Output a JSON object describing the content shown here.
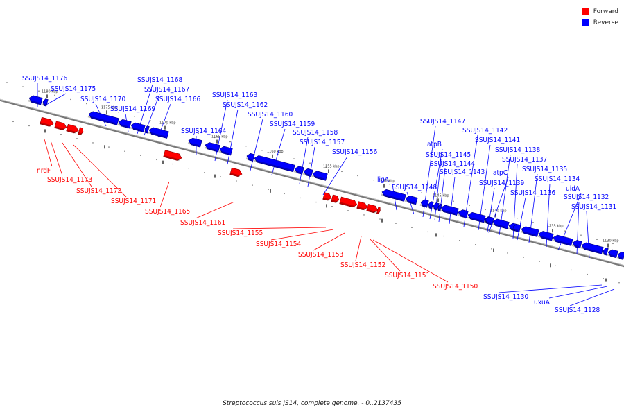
{
  "caption": "Streptococcus suis JS14, complete genome. - 0..2137435",
  "legend": [
    {
      "label": "Forward",
      "color": "#ff0000"
    },
    {
      "label": "Reverse",
      "color": "#0000ff"
    }
  ],
  "colors": {
    "forward": "#ff0000",
    "reverse": "#0000ff",
    "backbone": "#666666"
  },
  "scale_ticks": [
    "1180 kbp",
    "1175 kbp",
    "1170 kbp",
    "1165 kbp",
    "1160 kbp",
    "1155 kbp",
    "1150 kbp",
    "1145 kbp",
    "1140 kbp",
    "1135 kbp",
    "1130 kbp"
  ],
  "genes": [
    {
      "name": "SSUJS14_1176",
      "strand": "reverse"
    },
    {
      "name": "SSUJS14_1175",
      "strand": "reverse"
    },
    {
      "name": "nrdF",
      "strand": "forward"
    },
    {
      "name": "SSUJS14_1173",
      "strand": "forward"
    },
    {
      "name": "SSUJS14_1172",
      "strand": "forward"
    },
    {
      "name": "SSUJS14_1171",
      "strand": "forward"
    },
    {
      "name": "SSUJS14_1170",
      "strand": "reverse"
    },
    {
      "name": "SSUJS14_1169",
      "strand": "reverse"
    },
    {
      "name": "SSUJS14_1168",
      "strand": "reverse"
    },
    {
      "name": "SSUJS14_1167",
      "strand": "reverse"
    },
    {
      "name": "SSUJS14_1166",
      "strand": "reverse"
    },
    {
      "name": "SSUJS14_1165",
      "strand": "forward"
    },
    {
      "name": "SSUJS14_1164",
      "strand": "reverse"
    },
    {
      "name": "SSUJS14_1163",
      "strand": "reverse"
    },
    {
      "name": "SSUJS14_1162",
      "strand": "reverse"
    },
    {
      "name": "SSUJS14_1161",
      "strand": "forward"
    },
    {
      "name": "SSUJS14_1160",
      "strand": "reverse"
    },
    {
      "name": "SSUJS14_1159",
      "strand": "reverse"
    },
    {
      "name": "SSUJS14_1158",
      "strand": "reverse"
    },
    {
      "name": "SSUJS14_1157",
      "strand": "reverse"
    },
    {
      "name": "SSUJS14_1156",
      "strand": "reverse"
    },
    {
      "name": "SSUJS14_1155",
      "strand": "forward"
    },
    {
      "name": "SSUJS14_1154",
      "strand": "forward"
    },
    {
      "name": "SSUJS14_1153",
      "strand": "forward"
    },
    {
      "name": "SSUJS14_1152",
      "strand": "forward"
    },
    {
      "name": "SSUJS14_1151",
      "strand": "forward"
    },
    {
      "name": "SSUJS14_1150",
      "strand": "forward"
    },
    {
      "name": "ligA",
      "strand": "reverse"
    },
    {
      "name": "SSUJS14_1148",
      "strand": "reverse"
    },
    {
      "name": "SSUJS14_1147",
      "strand": "reverse"
    },
    {
      "name": "atpB",
      "strand": "reverse"
    },
    {
      "name": "SSUJS14_1145",
      "strand": "reverse"
    },
    {
      "name": "SSUJS14_1144",
      "strand": "reverse"
    },
    {
      "name": "SSUJS14_1143",
      "strand": "reverse"
    },
    {
      "name": "SSUJS14_1142",
      "strand": "reverse"
    },
    {
      "name": "SSUJS14_1141",
      "strand": "reverse"
    },
    {
      "name": "atpC",
      "strand": "reverse"
    },
    {
      "name": "SSUJS14_1139",
      "strand": "reverse"
    },
    {
      "name": "SSUJS14_1138",
      "strand": "reverse"
    },
    {
      "name": "SSUJS14_1137",
      "strand": "reverse"
    },
    {
      "name": "SSUJS14_1136",
      "strand": "reverse"
    },
    {
      "name": "SSUJS14_1135",
      "strand": "reverse"
    },
    {
      "name": "SSUJS14_1134",
      "strand": "reverse"
    },
    {
      "name": "uidA",
      "strand": "reverse"
    },
    {
      "name": "SSUJS14_1132",
      "strand": "reverse"
    },
    {
      "name": "SSUJS14_1131",
      "strand": "reverse"
    },
    {
      "name": "SSUJS14_1130",
      "strand": "reverse"
    },
    {
      "name": "uxuA",
      "strand": "reverse"
    },
    {
      "name": "SSUJS14_1128",
      "strand": "reverse"
    }
  ]
}
